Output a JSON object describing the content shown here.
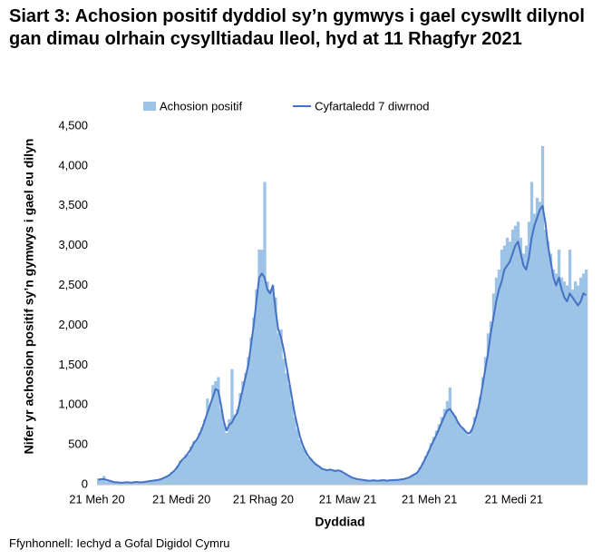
{
  "chart_data": {
    "type": "bar-line",
    "title": "Siart 3: Achosion positif dyddiol sy’n gymwys i gael cyswllt dilynol gan dimau olrhain cysylltiadau lleol, hyd at 11 Rhagfyr 2021",
    "x_label": "Dyddiad",
    "y_label": "Nifer yr achosion positif sy’n gymwys i gael eu dilyn",
    "source": "Ffynhonnell: Iechyd a Gofal Digidol Cymru",
    "categories": [
      "21 Meh 20",
      null,
      null,
      null,
      null,
      null,
      null,
      null,
      null,
      null,
      null,
      null,
      null,
      null,
      null,
      null,
      null,
      null,
      null,
      null,
      null,
      null,
      null,
      null,
      null,
      null,
      null,
      null,
      null,
      null,
      null,
      "21 Medi 20",
      null,
      null,
      null,
      null,
      null,
      null,
      null,
      null,
      null,
      null,
      null,
      null,
      null,
      null,
      null,
      null,
      null,
      null,
      null,
      null,
      null,
      null,
      null,
      null,
      null,
      null,
      null,
      null,
      null,
      "21 Rhag 20",
      null,
      null,
      null,
      null,
      null,
      null,
      null,
      null,
      null,
      null,
      null,
      null,
      null,
      null,
      null,
      null,
      null,
      null,
      null,
      null,
      null,
      null,
      null,
      null,
      null,
      null,
      null,
      null,
      null,
      null,
      "21 Maw 21",
      null,
      null,
      null,
      null,
      null,
      null,
      null,
      null,
      null,
      null,
      null,
      null,
      null,
      null,
      null,
      null,
      null,
      null,
      null,
      null,
      null,
      null,
      null,
      null,
      null,
      null,
      null,
      null,
      null,
      "21 Meh 21",
      null,
      null,
      null,
      null,
      null,
      null,
      null,
      null,
      null,
      null,
      null,
      null,
      null,
      null,
      null,
      null,
      null,
      null,
      null,
      null,
      null,
      null,
      null,
      null,
      null,
      null,
      null,
      null,
      null,
      null,
      "21 Medi 21",
      null,
      null,
      null,
      null,
      null,
      null,
      null,
      null,
      null,
      null,
      null,
      null,
      null,
      null,
      null,
      null,
      null,
      null,
      null,
      null,
      null,
      null,
      null,
      null,
      null,
      null
    ],
    "series": [
      {
        "name": "Achosion positif",
        "kind": "bar",
        "color": "#9dc3e6",
        "values": [
          80,
          60,
          110,
          40,
          40,
          30,
          30,
          25,
          30,
          20,
          35,
          25,
          25,
          35,
          30,
          30,
          35,
          30,
          45,
          40,
          55,
          50,
          65,
          75,
          80,
          110,
          120,
          160,
          170,
          240,
          300,
          310,
          380,
          380,
          480,
          550,
          560,
          650,
          720,
          820,
          1080,
          1000,
          1250,
          1300,
          1350,
          950,
          780,
          650,
          820,
          1450,
          880,
          950,
          1150,
          1300,
          1400,
          1600,
          1850,
          2100,
          2450,
          2950,
          2950,
          3800,
          2550,
          2450,
          2500,
          2350,
          1900,
          1950,
          1580,
          1400,
          1250,
          1050,
          850,
          700,
          560,
          480,
          430,
          340,
          330,
          270,
          260,
          220,
          200,
          200,
          190,
          200,
          180,
          190,
          170,
          180,
          140,
          130,
          100,
          90,
          80,
          70,
          70,
          55,
          60,
          50,
          55,
          60,
          50,
          45,
          60,
          55,
          50,
          60,
          55,
          65,
          60,
          70,
          80,
          85,
          90,
          120,
          140,
          160,
          220,
          280,
          360,
          420,
          520,
          600,
          680,
          760,
          850,
          950,
          1050,
          1220,
          900,
          860,
          780,
          720,
          700,
          650,
          620,
          700,
          850,
          950,
          1100,
          1350,
          1600,
          1900,
          2050,
          2400,
          2600,
          2700,
          2950,
          3000,
          3100,
          3050,
          3200,
          3250,
          3300,
          3100,
          2900,
          3000,
          3300,
          3800,
          3400,
          3600,
          3550,
          4250,
          3200,
          3050,
          2900,
          2700,
          2650,
          2950,
          2600,
          2550,
          2500,
          2950,
          2450,
          2550,
          2500,
          2600,
          2650,
          2700
        ]
      },
      {
        "name": "Cyfartaledd 7 diwrnod",
        "kind": "line",
        "color": "#4472c4",
        "values": [
          60,
          70,
          70,
          60,
          50,
          40,
          30,
          30,
          25,
          25,
          30,
          30,
          25,
          30,
          35,
          30,
          30,
          35,
          40,
          45,
          50,
          55,
          60,
          70,
          85,
          100,
          120,
          150,
          180,
          220,
          280,
          320,
          350,
          400,
          450,
          520,
          560,
          620,
          700,
          800,
          900,
          1000,
          1100,
          1200,
          1180,
          1000,
          800,
          680,
          750,
          780,
          850,
          900,
          1050,
          1200,
          1350,
          1500,
          1750,
          2000,
          2300,
          2600,
          2650,
          2600,
          2450,
          2400,
          2500,
          2200,
          1950,
          1850,
          1700,
          1500,
          1300,
          1100,
          900,
          750,
          600,
          500,
          420,
          360,
          320,
          280,
          250,
          230,
          200,
          190,
          180,
          190,
          180,
          170,
          180,
          170,
          150,
          130,
          110,
          90,
          80,
          70,
          65,
          60,
          55,
          50,
          50,
          55,
          50,
          50,
          55,
          55,
          50,
          55,
          55,
          60,
          60,
          65,
          70,
          80,
          90,
          110,
          130,
          150,
          200,
          260,
          330,
          400,
          480,
          550,
          620,
          700,
          780,
          860,
          930,
          950,
          900,
          850,
          780,
          730,
          700,
          660,
          640,
          680,
          780,
          900,
          1050,
          1250,
          1450,
          1650,
          1900,
          2100,
          2300,
          2450,
          2550,
          2700,
          2750,
          2800,
          2900,
          3000,
          3050,
          2900,
          2750,
          2700,
          2850,
          3100,
          3250,
          3350,
          3450,
          3500,
          3300,
          3000,
          2800,
          2600,
          2500,
          2600,
          2450,
          2350,
          2300,
          2400,
          2350,
          2300,
          2250,
          2300,
          2400,
          2380
        ]
      }
    ],
    "ylim": [
      0,
      4500
    ],
    "yticks": [
      0,
      500,
      {
        "value": 1000,
        "label": "1,000"
      },
      {
        "value": 1500,
        "label": "1,500"
      },
      {
        "value": 2000,
        "label": "2,000"
      },
      {
        "value": 2500,
        "label": "2,500"
      },
      {
        "value": 3000,
        "label": "3,000"
      },
      {
        "value": 3500,
        "label": "3,500"
      },
      {
        "value": 4000,
        "label": "4,000"
      },
      {
        "value": 4500,
        "label": "4,500"
      }
    ],
    "grid": false,
    "legend": "top"
  }
}
